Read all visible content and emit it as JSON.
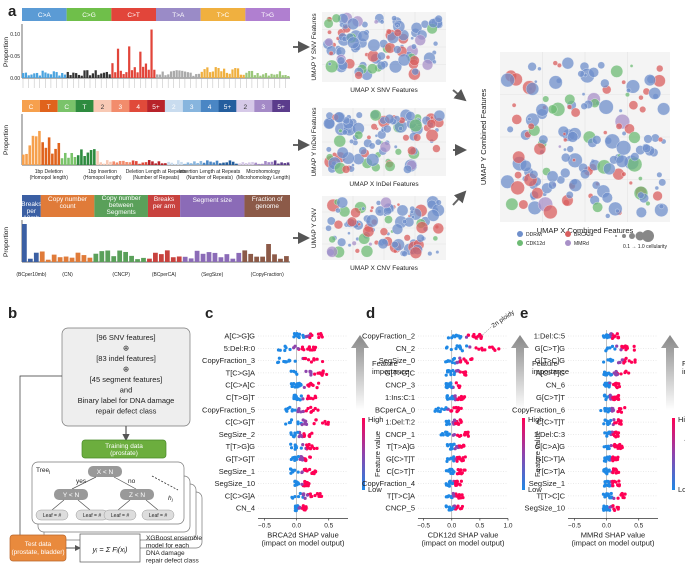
{
  "panels": {
    "a": "a",
    "b": "b",
    "c": "c",
    "d": "d",
    "e": "e"
  },
  "panel_a": {
    "snv": {
      "categories": [
        "C>A",
        "C>G",
        "C>T",
        "T>A",
        "T>C",
        "T>G"
      ],
      "colors": [
        "#4aa3df",
        "#222222",
        "#e2453a",
        "#aaaaaa",
        "#f0b03f",
        "#9bc77a"
      ],
      "ylabel": "Proportion",
      "yticks": [
        "0.00",
        "0.05",
        "0.10"
      ]
    },
    "indel": {
      "header": [
        "C",
        "T",
        "C",
        "T",
        "2",
        "3",
        "4",
        "5+",
        "2",
        "3",
        "4",
        "5+",
        "2",
        "3",
        "5+"
      ],
      "header_colors": [
        "#f6a04d",
        "#e0631c",
        "#7ac36a",
        "#2e8b3f",
        "#f8c9b4",
        "#f28c6c",
        "#e04a3a",
        "#b8232a",
        "#c9dcef",
        "#87b5de",
        "#4a86c4",
        "#245e9e",
        "#d6c9e8",
        "#a48ac7",
        "#5b3c8c"
      ],
      "ylabel": "Proportion",
      "xlabels": [
        "1bp Deletion\n(Homopol length)",
        "1bp Insertion\n(Homopol length)",
        "Deletion Length at Repeats\n(Number of Repeats)",
        "Insertion Length at Repeats\n(Number of Repeats)",
        "Microhomology\n(Microhomology Length)"
      ]
    },
    "cnv": {
      "header": [
        "Breaks per 10mb",
        "Copy number count",
        "Copy number between Segments",
        "Breaks per arm",
        "Segment size",
        "Fraction of genome"
      ],
      "header_colors": [
        "#3b5fa3",
        "#e07b39",
        "#5aa05a",
        "#c8423e",
        "#8b6bb7",
        "#8c5a48"
      ],
      "ylabel": "Proportion",
      "xgroups": [
        "(BCper10mb)",
        "(CN)",
        "(CNCP)",
        "(BCperCA)",
        "(SegSize)",
        "(CopyFraction)"
      ]
    },
    "umaps": [
      {
        "xlabel": "UMAP X SNV Features",
        "ylabel": "UMAP Y SNV Features"
      },
      {
        "xlabel": "UMAP X InDel Features",
        "ylabel": "UMAP Y InDel Features"
      },
      {
        "xlabel": "UMAP X CNV Features",
        "ylabel": "UMAP Y CNV"
      },
      {
        "xlabel": "UMAP X Combined Features",
        "ylabel": "UMAP Y Combined Features"
      }
    ],
    "combined_legend": {
      "groups": [
        {
          "label": "DDRwt",
          "color": "#6f8fcb"
        },
        {
          "label": "BRCA2d",
          "color": "#d95f5f"
        },
        {
          "label": "CDK12d",
          "color": "#6dbb74"
        },
        {
          "label": "MMRd",
          "color": "#a890c8"
        }
      ],
      "size_label": "0.1 → 1.0 cellularity"
    }
  },
  "panel_b": {
    "input_box": [
      "[96 SNV features]",
      "⊕",
      "[83 indel features]",
      "⊕",
      "[45 segment features]",
      "and",
      "Binary label for DNA damage",
      "repair defect class"
    ],
    "training": [
      "Training data",
      "(prostate)"
    ],
    "tree": "Tree",
    "tree_index": "i",
    "split_root": "X < N",
    "split_left": "Y < N",
    "split_right": "Z < N",
    "yes": "yes",
    "no": "no",
    "leaf": "Leaf = #",
    "h_label": "h",
    "test": [
      "Test data",
      "(prostate, bladder)"
    ],
    "formula": "yᵢ = Σ Fᵢ(xᵢ)",
    "xgb_text": [
      "XGBoost ensemble",
      "model for each",
      "DNA damage",
      "repair defect class"
    ]
  },
  "chart_data": [
    {
      "type": "scatter",
      "panel": "c",
      "title": "BRCA2d SHAP value (impact on model output)",
      "xlabel": "BRCA2d SHAP value\n(impact on model output)",
      "xticks": [
        "−0.5",
        "0.0",
        "0.5"
      ],
      "xlim": [
        -0.6,
        0.8
      ],
      "features": [
        "A[C>G]G",
        "5:Del:R:0",
        "CopyFraction_3",
        "T[C>G]A",
        "C[C>A]C",
        "C[T>G]T",
        "CopyFraction_5",
        "C[C>G]T",
        "SegSize_2",
        "T[T>G]G",
        "G[T>G]T",
        "SegSize_1",
        "SegSize_10",
        "C[C>G]A",
        "CN_4"
      ],
      "spread": [
        [
          -0.05,
          0.4
        ],
        [
          -0.3,
          0.3
        ],
        [
          -0.3,
          0.45
        ],
        [
          -0.1,
          0.5
        ],
        [
          -0.1,
          0.35
        ],
        [
          -0.05,
          0.3
        ],
        [
          -0.2,
          0.35
        ],
        [
          -0.2,
          0.5
        ],
        [
          -0.1,
          0.25
        ],
        [
          -0.1,
          0.35
        ],
        [
          -0.1,
          0.25
        ],
        [
          -0.1,
          0.3
        ],
        [
          -0.05,
          0.2
        ],
        [
          -0.1,
          0.4
        ],
        [
          -0.05,
          0.15
        ]
      ],
      "feature_importance": "Feature\nimportance",
      "colorbar": {
        "high": "High",
        "low": "Low",
        "label": "Feature value"
      }
    },
    {
      "type": "scatter",
      "panel": "d",
      "title": "CDK12d SHAP value (impact on model output)",
      "xlabel": "CDK12d SHAP value\n(impact on model output)",
      "xticks": [
        "−0.5",
        "0.0",
        "0.5",
        "1.0"
      ],
      "xlim": [
        -0.6,
        1.0
      ],
      "features": [
        "CopyFraction_2",
        "CN_2",
        "SegSize_0",
        "G[T>G]C",
        "CNCP_3",
        "1:Ins:C:1",
        "BCperCA_0",
        "1:Del:T:2",
        "CNCP_1",
        "T[T>A]G",
        "G[C>T]T",
        "C[C>T]T",
        "CopyFraction_4",
        "T[T>C]A",
        "CNCP_5"
      ],
      "spread": [
        [
          -0.1,
          0.6
        ],
        [
          -0.1,
          0.85
        ],
        [
          -0.15,
          0.4
        ],
        [
          -0.1,
          0.3
        ],
        [
          -0.1,
          0.2
        ],
        [
          -0.1,
          0.25
        ],
        [
          -0.3,
          0.2
        ],
        [
          -0.1,
          0.2
        ],
        [
          -0.2,
          0.3
        ],
        [
          -0.1,
          0.3
        ],
        [
          -0.1,
          0.25
        ],
        [
          -0.1,
          0.25
        ],
        [
          -0.1,
          0.2
        ],
        [
          -0.1,
          0.2
        ],
        [
          -0.1,
          0.2
        ]
      ],
      "annotation": "2n ploidy",
      "feature_importance": "Feature\nimportance",
      "colorbar": {
        "high": "High",
        "low": "Low",
        "label": "Feature value"
      }
    },
    {
      "type": "scatter",
      "panel": "e",
      "title": "MMRd SHAP value (impact on model output)",
      "xlabel": "MMRd SHAP value\n(impact on model output)",
      "xticks": [
        "−0.5",
        "0.0",
        "0.5"
      ],
      "xlim": [
        -0.6,
        0.8
      ],
      "features": [
        "1:Del:C:5",
        "G[C>T]G",
        "G[T>C]G",
        "A[C>T]G",
        "CN_6",
        "G[C>T]T",
        "CopyFraction_6",
        "C[C>T]T",
        "1:Del:C:3",
        "C[C>A]G",
        "G[C>T]A",
        "T[C>T]A",
        "SegSize_1",
        "T[T>C]C",
        "SegSize_10"
      ],
      "spread": [
        [
          -0.05,
          0.2
        ],
        [
          -0.05,
          0.45
        ],
        [
          -0.05,
          0.5
        ],
        [
          -0.05,
          0.35
        ],
        [
          -0.05,
          0.2
        ],
        [
          -0.05,
          0.2
        ],
        [
          -0.1,
          0.3
        ],
        [
          -0.05,
          0.25
        ],
        [
          -0.05,
          0.2
        ],
        [
          -0.05,
          0.25
        ],
        [
          -0.05,
          0.2
        ],
        [
          -0.05,
          0.2
        ],
        [
          -0.05,
          0.2
        ],
        [
          -0.05,
          0.3
        ],
        [
          -0.05,
          0.2
        ]
      ],
      "feature_importance": "Feature\nimportance",
      "colorbar": {
        "high": "High",
        "low": "Low",
        "label": "Feature value"
      }
    }
  ]
}
